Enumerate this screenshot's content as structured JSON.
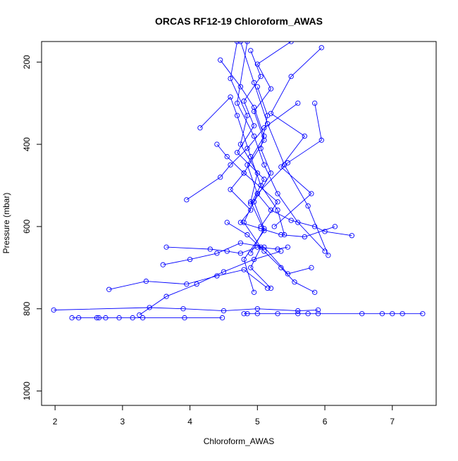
{
  "chart_data": {
    "type": "line",
    "title": "ORCAS RF12-19 Chloroform_AWAS",
    "xlabel": "Chloroform_AWAS",
    "ylabel": "Pressure (mbar)",
    "xlim": [
      1.8,
      7.65
    ],
    "ylim": [
      1035,
      150
    ],
    "y_reversed": true,
    "x_ticks": [
      2,
      3,
      4,
      5,
      6,
      7
    ],
    "y_ticks": [
      200,
      400,
      600,
      800,
      1000
    ],
    "series_color": "#0000ff",
    "marker": "open-circle",
    "grid": false,
    "series": [
      {
        "x": [
          4.45,
          4.75,
          4.95,
          5.1,
          4.85,
          5.0,
          4.8,
          5.05,
          4.9,
          5.2
        ],
        "y": [
          195,
          260,
          310,
          380,
          450,
          520,
          590,
          650,
          700,
          750
        ]
      },
      {
        "x": [
          4.7,
          4.6,
          4.85,
          4.75,
          5.0,
          4.9,
          5.1,
          4.8,
          4.95
        ],
        "y": [
          150,
          240,
          330,
          400,
          470,
          540,
          610,
          680,
          760
        ]
      },
      {
        "x": [
          5.95,
          5.5,
          5.2,
          5.7,
          5.35,
          5.8,
          5.25
        ],
        "y": [
          165,
          235,
          325,
          380,
          455,
          520,
          600
        ]
      },
      {
        "x": [
          4.15,
          4.6,
          4.7,
          4.9,
          5.05,
          5.3,
          5.4
        ],
        "y": [
          360,
          285,
          330,
          430,
          500,
          560,
          620
        ]
      },
      {
        "x": [
          3.95,
          4.45,
          4.6,
          4.85,
          5.1,
          5.6
        ],
        "y": [
          535,
          480,
          450,
          410,
          360,
          300
        ]
      },
      {
        "x": [
          3.65,
          4.3,
          4.55,
          4.75,
          5.0,
          5.3,
          5.45
        ],
        "y": [
          650,
          655,
          660,
          665,
          650,
          655,
          650
        ]
      },
      {
        "x": [
          3.6,
          4.0,
          4.4,
          4.75,
          5.1,
          5.45,
          5.8
        ],
        "y": [
          693,
          680,
          665,
          640,
          650,
          715,
          700
        ]
      },
      {
        "x": [
          2.8,
          3.35,
          3.95,
          4.4,
          4.8,
          5.15
        ],
        "y": [
          753,
          733,
          740,
          720,
          705,
          750
        ]
      },
      {
        "x": [
          1.98,
          3.4,
          3.9,
          4.5,
          5.0,
          5.6,
          5.9
        ],
        "y": [
          803,
          797,
          800,
          805,
          800,
          805,
          803
        ]
      },
      {
        "x": [
          2.25,
          2.35,
          2.62,
          2.65,
          2.75,
          2.95,
          3.15,
          3.3,
          3.92,
          4.48
        ],
        "y": [
          822,
          822,
          822,
          822,
          822,
          822,
          822,
          822,
          822,
          822
        ]
      },
      {
        "x": [
          4.8,
          4.85,
          5.0,
          5.3,
          5.6,
          5.75,
          5.9,
          6.55,
          6.85,
          7.0,
          7.15,
          7.45
        ],
        "y": [
          812,
          812,
          812,
          812,
          812,
          812,
          812,
          812,
          812,
          812,
          812,
          812
        ]
      },
      {
        "x": [
          5.5,
          5.0,
          5.2,
          4.95,
          5.1,
          4.8,
          5.3,
          5.05
        ],
        "y": [
          150,
          205,
          265,
          320,
          390,
          470,
          540,
          600
        ]
      },
      {
        "x": [
          4.9,
          5.05,
          4.8,
          4.95,
          4.7,
          5.1,
          4.9
        ],
        "y": [
          172,
          235,
          295,
          355,
          420,
          485,
          545
        ]
      },
      {
        "x": [
          4.4,
          4.55,
          4.8,
          4.6,
          4.9,
          4.75,
          5.05,
          5.35,
          5.7,
          6.15
        ],
        "y": [
          400,
          430,
          470,
          510,
          560,
          590,
          605,
          620,
          625,
          600
        ]
      },
      {
        "x": [
          5.85,
          5.95,
          5.45,
          5.0,
          5.2,
          5.5,
          5.85,
          6.0,
          6.4
        ],
        "y": [
          300,
          390,
          445,
          520,
          560,
          585,
          600,
          612,
          622
        ]
      },
      {
        "x": [
          4.75,
          4.95,
          5.15,
          5.4,
          5.75,
          6.05
        ],
        "y": [
          150,
          250,
          350,
          450,
          550,
          670
        ]
      },
      {
        "x": [
          4.55,
          4.85,
          5.1,
          5.35,
          5.55,
          5.85
        ],
        "y": [
          590,
          620,
          660,
          700,
          735,
          760
        ]
      },
      {
        "x": [
          3.25,
          3.65,
          4.1,
          4.5,
          4.95,
          5.35
        ],
        "y": [
          815,
          770,
          740,
          710,
          680,
          660
        ]
      },
      {
        "x": [
          5.0,
          5.15,
          5.05,
          5.2,
          4.95,
          5.1,
          4.9
        ],
        "y": [
          260,
          330,
          410,
          470,
          540,
          605,
          665
        ]
      },
      {
        "x": [
          4.85,
          4.7,
          4.95,
          5.1,
          5.3,
          5.6,
          6.0
        ],
        "y": [
          150,
          300,
          380,
          450,
          520,
          590,
          660
        ]
      }
    ]
  }
}
